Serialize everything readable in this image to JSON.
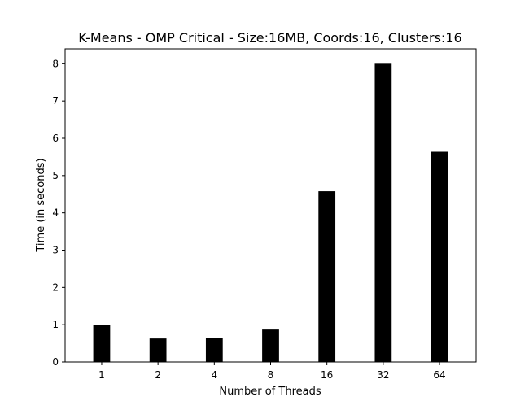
{
  "chart_data": {
    "type": "bar",
    "title": "K-Means - OMP Critical - Size:16MB, Coords:16, Clusters:16",
    "xlabel": "Number of Threads",
    "ylabel": "Time (in seconds)",
    "categories": [
      "1",
      "2",
      "4",
      "8",
      "16",
      "32",
      "64"
    ],
    "values": [
      1.0,
      0.63,
      0.65,
      0.87,
      4.58,
      8.0,
      5.64
    ],
    "ylim": [
      0,
      8.4
    ],
    "yticks": [
      "0",
      "1",
      "2",
      "3",
      "4",
      "5",
      "6",
      "7",
      "8"
    ],
    "grid": false,
    "bar_color": "#000000"
  }
}
